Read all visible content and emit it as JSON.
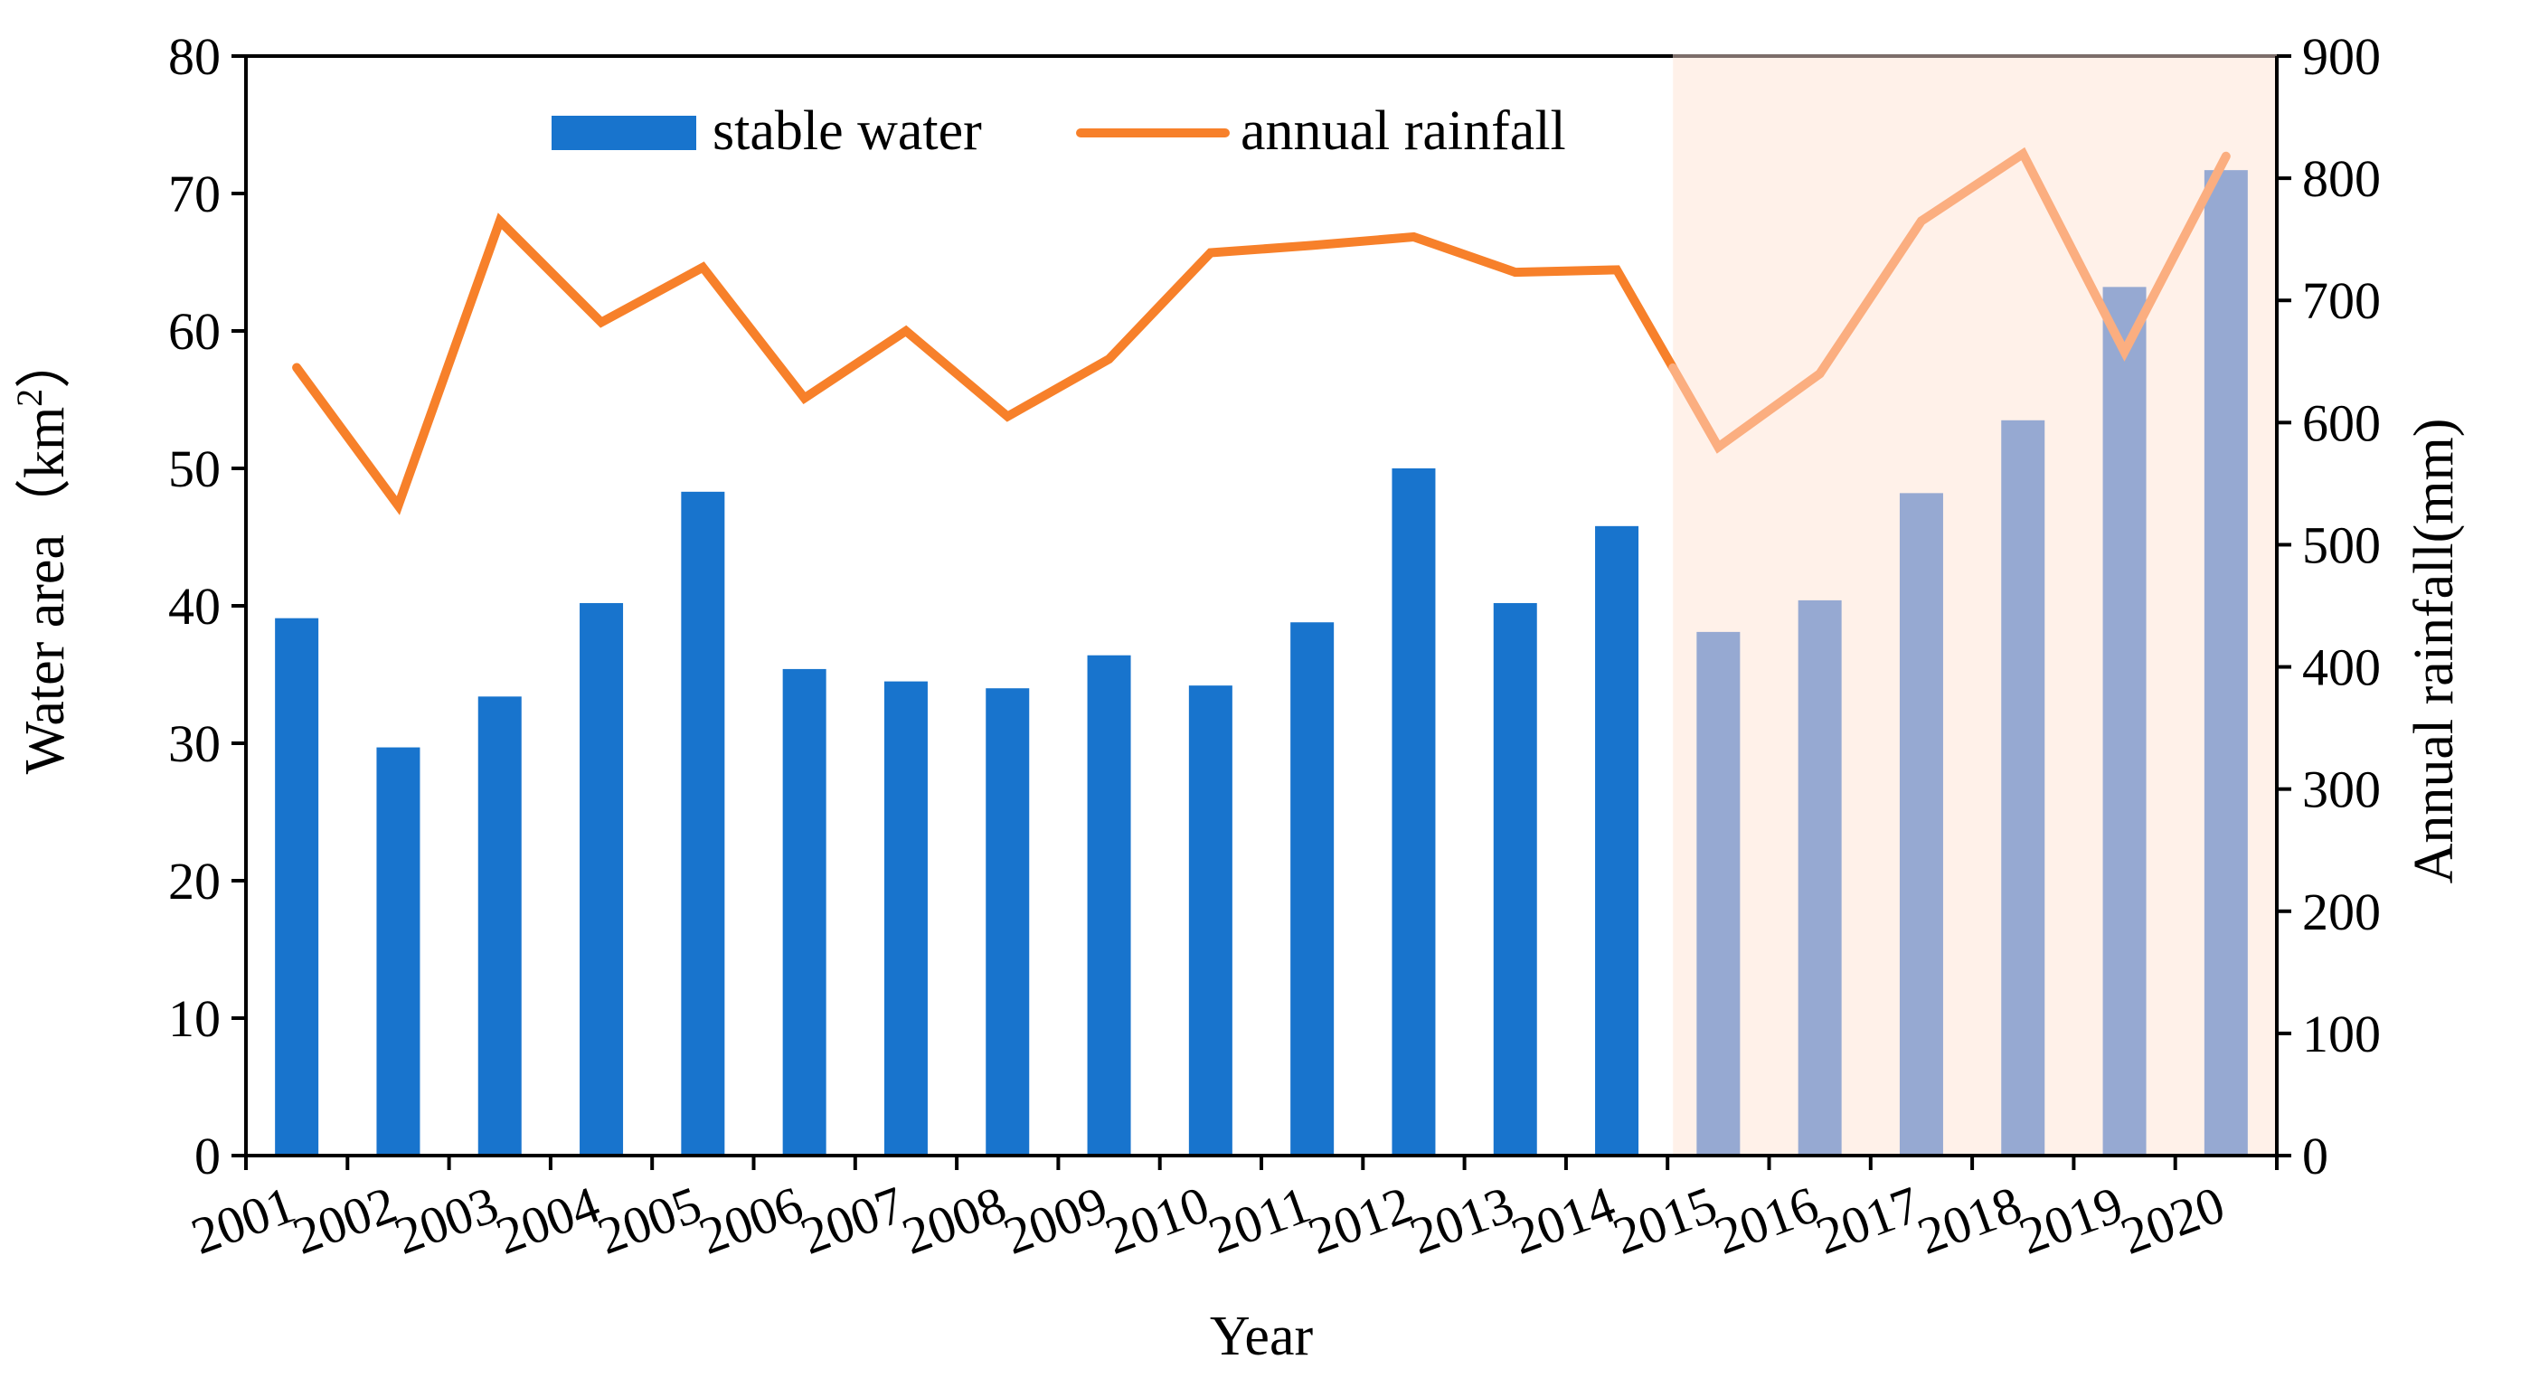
{
  "chart_data": {
    "type": "bar+line",
    "categories": [
      "2001",
      "2002",
      "2003",
      "2004",
      "2005",
      "2006",
      "2007",
      "2008",
      "2009",
      "2010",
      "2011",
      "2012",
      "2013",
      "2014",
      "2015",
      "2016",
      "2017",
      "2018",
      "2019",
      "2020"
    ],
    "series": [
      {
        "name": "stable water",
        "type": "bar",
        "axis": "left",
        "color": "#1874CD",
        "highlight_color": "#96A9D2",
        "values": [
          39.1,
          29.7,
          33.4,
          40.2,
          48.3,
          35.4,
          34.5,
          34.0,
          36.4,
          34.2,
          38.8,
          50.0,
          40.2,
          45.8,
          38.1,
          40.4,
          48.2,
          53.5,
          63.2,
          71.7
        ]
      },
      {
        "name": "annual rainfall",
        "type": "line",
        "axis": "right",
        "color": "#F7802A",
        "highlight_color": "#FBAE80",
        "values": [
          645,
          532,
          765,
          682,
          727,
          620,
          675,
          605,
          652,
          739,
          745,
          752,
          723,
          725,
          580,
          640,
          765,
          820,
          658,
          818
        ]
      }
    ],
    "highlight": {
      "from_category": "2015",
      "to_category": "2020",
      "color": "#FFF1E9"
    },
    "xlabel": "Year",
    "ylabel": "Water area（km²）",
    "ylabel_main": "Water area",
    "ylabel_unit_pre": "（km",
    "ylabel_unit_sup": "2",
    "ylabel_unit_post": "）",
    "y2label": "Annual rainfall(mm)",
    "ylim": [
      0,
      80
    ],
    "yticks": [
      0,
      10,
      20,
      30,
      40,
      50,
      60,
      70,
      80
    ],
    "y2lim": [
      0,
      900
    ],
    "y2ticks": [
      0,
      100,
      200,
      300,
      400,
      500,
      600,
      700,
      800,
      900
    ],
    "grid": false,
    "legend": {
      "position": "top-center",
      "entries": [
        "stable water",
        "annual rainfall"
      ]
    }
  }
}
